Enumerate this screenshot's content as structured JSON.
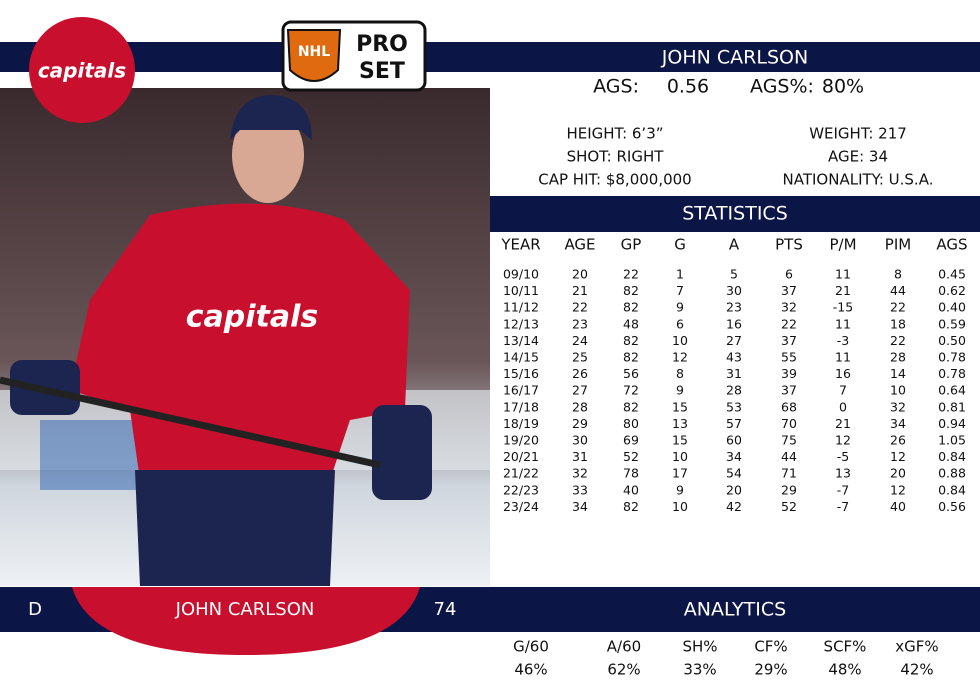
{
  "header": {
    "player_name": "JOHN CARLSON",
    "ags_label": "AGS:",
    "ags": "0.56",
    "ags_pct_label": "AGS%:",
    "ags_pct": "80%"
  },
  "logos": {
    "team": "capitals",
    "brand_top": "PRO",
    "brand_bottom": "SET",
    "league": "NHL"
  },
  "bio": {
    "left": [
      "HEIGHT: 6’3”",
      "SHOT: RIGHT",
      "CAP HIT: $8,000,000"
    ],
    "right": [
      "WEIGHT: 217",
      "AGE: 34",
      "NATIONALITY: U.S.A."
    ]
  },
  "statistics": {
    "title": "STATISTICS",
    "columns": [
      "YEAR",
      "AGE",
      "GP",
      "G",
      "A",
      "PTS",
      "P/M",
      "PIM",
      "AGS"
    ],
    "rows": [
      [
        "09/10",
        "20",
        "22",
        "1",
        "5",
        "6",
        "11",
        "8",
        "0.45"
      ],
      [
        "10/11",
        "21",
        "82",
        "7",
        "30",
        "37",
        "21",
        "44",
        "0.62"
      ],
      [
        "11/12",
        "22",
        "82",
        "9",
        "23",
        "32",
        "-15",
        "22",
        "0.40"
      ],
      [
        "12/13",
        "23",
        "48",
        "6",
        "16",
        "22",
        "11",
        "18",
        "0.59"
      ],
      [
        "13/14",
        "24",
        "82",
        "10",
        "27",
        "37",
        "-3",
        "22",
        "0.50"
      ],
      [
        "14/15",
        "25",
        "82",
        "12",
        "43",
        "55",
        "11",
        "28",
        "0.78"
      ],
      [
        "15/16",
        "26",
        "56",
        "8",
        "31",
        "39",
        "16",
        "14",
        "0.78"
      ],
      [
        "16/17",
        "27",
        "72",
        "9",
        "28",
        "37",
        "7",
        "10",
        "0.64"
      ],
      [
        "17/18",
        "28",
        "82",
        "15",
        "53",
        "68",
        "0",
        "32",
        "0.81"
      ],
      [
        "18/19",
        "29",
        "80",
        "13",
        "57",
        "70",
        "21",
        "34",
        "0.94"
      ],
      [
        "19/20",
        "30",
        "69",
        "15",
        "60",
        "75",
        "12",
        "26",
        "1.05"
      ],
      [
        "20/21",
        "31",
        "52",
        "10",
        "34",
        "44",
        "-5",
        "12",
        "0.84"
      ],
      [
        "21/22",
        "32",
        "78",
        "17",
        "54",
        "71",
        "13",
        "20",
        "0.88"
      ],
      [
        "22/23",
        "33",
        "40",
        "9",
        "20",
        "29",
        "-7",
        "12",
        "0.84"
      ],
      [
        "23/24",
        "34",
        "82",
        "10",
        "42",
        "52",
        "-7",
        "40",
        "0.56"
      ]
    ]
  },
  "footer": {
    "position": "D",
    "player_name": "JOHN CARLSON",
    "number": "74"
  },
  "analytics": {
    "title": "ANALYTICS",
    "columns": [
      "G/60",
      "A/60",
      "SH%",
      "CF%",
      "SCF%",
      "xGF%"
    ],
    "values": [
      "46%",
      "62%",
      "33%",
      "29%",
      "48%",
      "42%"
    ]
  }
}
